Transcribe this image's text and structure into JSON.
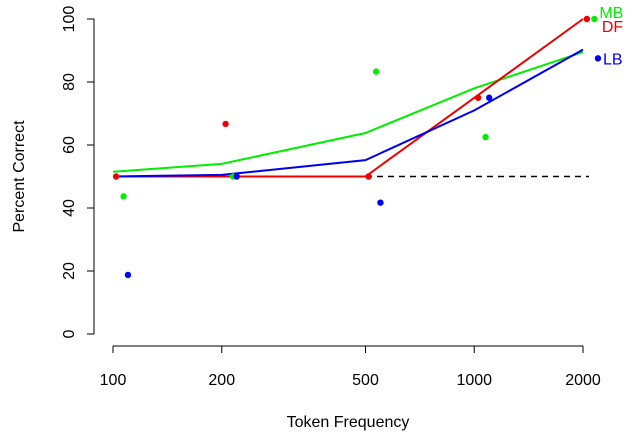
{
  "chart_data": {
    "type": "scatter",
    "title": "",
    "xlabel": "Token Frequency",
    "ylabel": "Percent Correct",
    "x_scale": "log",
    "xlim": [
      100,
      2000
    ],
    "ylim": [
      0,
      100
    ],
    "x_ticks": [
      100,
      200,
      500,
      1000,
      2000
    ],
    "x_tick_labels": [
      "100",
      "200",
      "500",
      "1000",
      "2000"
    ],
    "y_ticks": [
      0,
      20,
      40,
      60,
      80,
      100
    ],
    "y_tick_labels": [
      "0",
      "20",
      "40",
      "60",
      "80",
      "100"
    ],
    "grid": false,
    "reference_line": {
      "y": 50,
      "style": "dashed",
      "color": "#000000"
    },
    "series": [
      {
        "name": "MB",
        "color": "#00EE00",
        "points": [
          {
            "x": 107,
            "y": 43.7
          },
          {
            "x": 215,
            "y": 50
          },
          {
            "x": 535,
            "y": 83.3
          },
          {
            "x": 1075,
            "y": 62.5
          },
          {
            "x": 2150,
            "y": 100
          }
        ],
        "fit": [
          {
            "x": 100,
            "y": 51.5
          },
          {
            "x": 200,
            "y": 54
          },
          {
            "x": 500,
            "y": 63.8
          },
          {
            "x": 1000,
            "y": 78
          },
          {
            "x": 2000,
            "y": 89.5
          }
        ]
      },
      {
        "name": "DF",
        "color": "#EE0000",
        "points": [
          {
            "x": 102,
            "y": 50
          },
          {
            "x": 205,
            "y": 66.7
          },
          {
            "x": 510,
            "y": 50
          },
          {
            "x": 1025,
            "y": 75
          },
          {
            "x": 2050,
            "y": 100
          }
        ],
        "fit": [
          {
            "x": 100,
            "y": 50
          },
          {
            "x": 200,
            "y": 50
          },
          {
            "x": 500,
            "y": 50
          },
          {
            "x": 1000,
            "y": 75
          },
          {
            "x": 2000,
            "y": 100
          }
        ]
      },
      {
        "name": "LB",
        "color": "#0000EE",
        "points": [
          {
            "x": 110,
            "y": 18.75
          },
          {
            "x": 220,
            "y": 50
          },
          {
            "x": 550,
            "y": 41.7
          },
          {
            "x": 1100,
            "y": 75
          },
          {
            "x": 2200,
            "y": 87.5
          }
        ],
        "fit": [
          {
            "x": 100,
            "y": 50
          },
          {
            "x": 200,
            "y": 50.5
          },
          {
            "x": 500,
            "y": 55.2
          },
          {
            "x": 1000,
            "y": 71
          },
          {
            "x": 2000,
            "y": 90.3
          }
        ]
      }
    ]
  }
}
